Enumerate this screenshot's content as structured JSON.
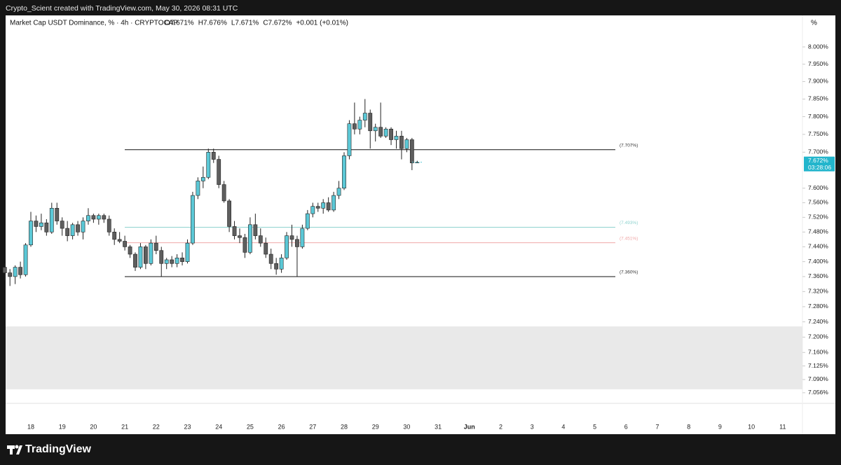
{
  "chart_data": {
    "type": "candlestick",
    "credit": "Crypto_Scient created with TradingView.com, May 30, 2026 08:31 UTC",
    "title": "Market Cap USDT Dominance, % · 4h · CRYPTOCAP",
    "ohlc_header": [
      "O7.671%",
      "H7.676%",
      "L7.671%",
      "C7.672%",
      "+0.001 (+0.01%)"
    ],
    "unit": "%",
    "log_scale": true,
    "ylim": [
      7.03,
      8.1
    ],
    "yticks": [
      {
        "value": 8.0,
        "label": "8.000%"
      },
      {
        "value": 7.95,
        "label": "7.950%"
      },
      {
        "value": 7.9,
        "label": "7.900%"
      },
      {
        "value": 7.85,
        "label": "7.850%"
      },
      {
        "value": 7.8,
        "label": "7.800%"
      },
      {
        "value": 7.75,
        "label": "7.750%"
      },
      {
        "value": 7.7,
        "label": "7.700%"
      },
      {
        "value": 7.6,
        "label": "7.600%"
      },
      {
        "value": 7.56,
        "label": "7.560%"
      },
      {
        "value": 7.52,
        "label": "7.520%"
      },
      {
        "value": 7.48,
        "label": "7.480%"
      },
      {
        "value": 7.44,
        "label": "7.440%"
      },
      {
        "value": 7.4,
        "label": "7.400%"
      },
      {
        "value": 7.36,
        "label": "7.360%"
      },
      {
        "value": 7.32,
        "label": "7.320%"
      },
      {
        "value": 7.28,
        "label": "7.280%"
      },
      {
        "value": 7.24,
        "label": "7.240%"
      },
      {
        "value": 7.2,
        "label": "7.200%"
      },
      {
        "value": 7.16,
        "label": "7.160%"
      },
      {
        "value": 7.125,
        "label": "7.125%"
      },
      {
        "value": 7.09,
        "label": "7.090%"
      },
      {
        "value": 7.056,
        "label": "7.056%"
      }
    ],
    "xtick_labels": [
      "18",
      "19",
      "20",
      "21",
      "22",
      "23",
      "24",
      "25",
      "26",
      "27",
      "28",
      "29",
      "30",
      "31",
      "Jun",
      "2",
      "3",
      "4",
      "5",
      "6",
      "7",
      "8",
      "9",
      "10",
      "11"
    ],
    "bull_color": "#5bc8d6",
    "bear_color": "#5e5e5e",
    "series": {
      "open": [
        7.385,
        7.37,
        7.36,
        7.385,
        7.365,
        7.445,
        7.51,
        7.495,
        7.505,
        7.48,
        7.545,
        7.51,
        7.49,
        7.47,
        7.5,
        7.48,
        7.51,
        7.525,
        7.515,
        7.525,
        7.515,
        7.48,
        7.46,
        7.455,
        7.44,
        7.42,
        7.385,
        7.44,
        7.395,
        7.45,
        7.43,
        7.395,
        7.405,
        7.395,
        7.41,
        7.4,
        7.45,
        7.58,
        7.62,
        7.63,
        7.7,
        7.68,
        7.61,
        7.565,
        7.495,
        7.47,
        7.465,
        7.425,
        7.5,
        7.47,
        7.45,
        7.42,
        7.395,
        7.38,
        7.41,
        7.47,
        7.46,
        7.44,
        7.49,
        7.53,
        7.55,
        7.545,
        7.56,
        7.54,
        7.58,
        7.6,
        7.69,
        7.78,
        7.765,
        7.79,
        7.81,
        7.76,
        7.77,
        7.745,
        7.765,
        7.735,
        7.745,
        7.71,
        7.735,
        7.671
      ],
      "high": [
        7.395,
        7.38,
        7.39,
        7.4,
        7.45,
        7.535,
        7.525,
        7.53,
        7.515,
        7.56,
        7.56,
        7.52,
        7.51,
        7.505,
        7.51,
        7.52,
        7.545,
        7.53,
        7.53,
        7.53,
        7.525,
        7.49,
        7.48,
        7.47,
        7.445,
        7.425,
        7.45,
        7.445,
        7.46,
        7.47,
        7.44,
        7.41,
        7.415,
        7.42,
        7.425,
        7.46,
        7.59,
        7.63,
        7.66,
        7.71,
        7.71,
        7.69,
        7.62,
        7.57,
        7.51,
        7.49,
        7.475,
        7.52,
        7.53,
        7.49,
        7.465,
        7.435,
        7.41,
        7.42,
        7.48,
        7.5,
        7.47,
        7.5,
        7.54,
        7.56,
        7.56,
        7.57,
        7.575,
        7.59,
        7.62,
        7.7,
        7.79,
        7.84,
        7.8,
        7.85,
        7.82,
        7.78,
        7.84,
        7.77,
        7.77,
        7.76,
        7.76,
        7.74,
        7.74,
        7.676
      ],
      "low": [
        7.35,
        7.335,
        7.34,
        7.355,
        7.36,
        7.44,
        7.48,
        7.485,
        7.47,
        7.475,
        7.5,
        7.47,
        7.455,
        7.46,
        7.47,
        7.46,
        7.5,
        7.505,
        7.5,
        7.505,
        7.47,
        7.445,
        7.45,
        7.43,
        7.41,
        7.375,
        7.38,
        7.38,
        7.39,
        7.42,
        7.36,
        7.38,
        7.385,
        7.385,
        7.39,
        7.395,
        7.445,
        7.57,
        7.6,
        7.625,
        7.67,
        7.6,
        7.56,
        7.48,
        7.46,
        7.45,
        7.41,
        7.42,
        7.46,
        7.44,
        7.41,
        7.38,
        7.365,
        7.37,
        7.405,
        7.44,
        7.36,
        7.435,
        7.485,
        7.52,
        7.535,
        7.53,
        7.535,
        7.535,
        7.57,
        7.595,
        7.68,
        7.75,
        7.75,
        7.77,
        7.71,
        7.73,
        7.74,
        7.74,
        7.72,
        7.71,
        7.68,
        7.7,
        7.65,
        7.671
      ],
      "close": [
        7.37,
        7.36,
        7.385,
        7.365,
        7.445,
        7.51,
        7.495,
        7.505,
        7.48,
        7.545,
        7.51,
        7.49,
        7.47,
        7.5,
        7.48,
        7.51,
        7.525,
        7.515,
        7.525,
        7.515,
        7.48,
        7.46,
        7.455,
        7.44,
        7.42,
        7.385,
        7.44,
        7.395,
        7.45,
        7.43,
        7.395,
        7.405,
        7.395,
        7.41,
        7.4,
        7.45,
        7.58,
        7.62,
        7.63,
        7.7,
        7.68,
        7.61,
        7.565,
        7.495,
        7.47,
        7.465,
        7.425,
        7.5,
        7.47,
        7.45,
        7.42,
        7.395,
        7.38,
        7.41,
        7.47,
        7.46,
        7.44,
        7.49,
        7.53,
        7.55,
        7.545,
        7.56,
        7.54,
        7.58,
        7.6,
        7.69,
        7.78,
        7.765,
        7.79,
        7.81,
        7.76,
        7.77,
        7.745,
        7.765,
        7.735,
        7.745,
        7.71,
        7.735,
        7.67,
        7.672
      ]
    },
    "levels": [
      {
        "value": 7.707,
        "label": "(7.707%)",
        "color": "#111111"
      },
      {
        "value": 7.493,
        "label": "(7.493%)",
        "color": "#8fd3cf"
      },
      {
        "value": 7.451,
        "label": "(7.451%)",
        "color": "#f0a8a8"
      },
      {
        "value": 7.36,
        "label": "(7.360%)",
        "color": "#111111"
      }
    ],
    "zone": [
      7.065,
      7.228
    ],
    "zone_color": "#e9e9e9",
    "last_price": {
      "value": 7.672,
      "label": "7.672%"
    },
    "countdown": "03:28:06",
    "brand": "TradingView"
  }
}
